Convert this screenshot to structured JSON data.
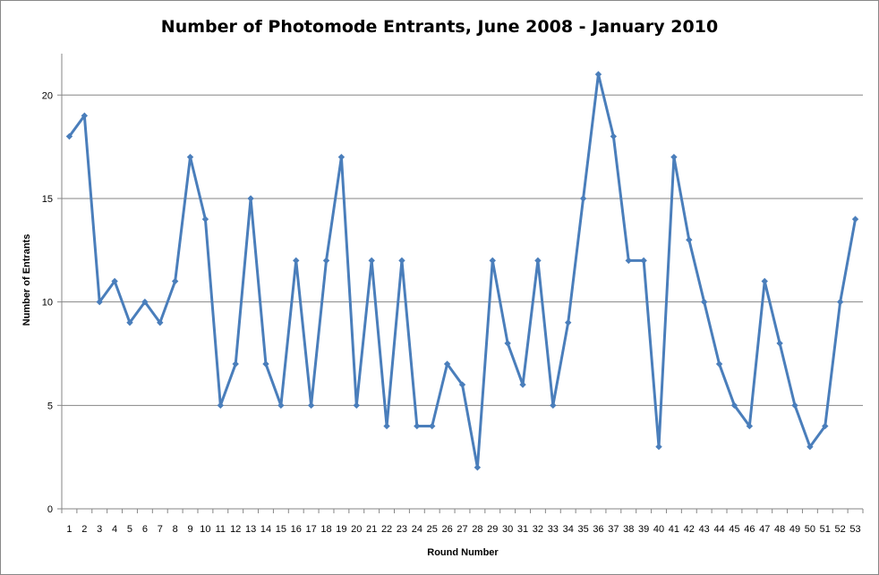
{
  "chart_data": {
    "type": "line",
    "title": "Number of Photomode Entrants, June 2008 - January 2010",
    "xlabel": "Round Number",
    "ylabel": "Number of Entrants",
    "x": [
      1,
      2,
      3,
      4,
      5,
      6,
      7,
      8,
      9,
      10,
      11,
      12,
      13,
      14,
      15,
      16,
      17,
      18,
      19,
      20,
      21,
      22,
      23,
      24,
      25,
      26,
      27,
      28,
      29,
      30,
      31,
      32,
      33,
      34,
      35,
      36,
      37,
      38,
      39,
      40,
      41,
      42,
      43,
      44,
      45,
      46,
      47,
      48,
      49,
      50,
      51,
      52,
      53
    ],
    "series": [
      {
        "values": [
          18,
          19,
          10,
          11,
          9,
          10,
          9,
          11,
          17,
          14,
          5,
          7,
          15,
          7,
          5,
          12,
          5,
          12,
          17,
          5,
          12,
          4,
          12,
          4,
          4,
          7,
          6,
          2,
          12,
          8,
          6,
          12,
          5,
          9,
          15,
          21,
          18,
          12,
          12,
          3,
          17,
          13,
          10,
          7,
          5,
          4,
          11,
          8,
          5,
          3,
          4,
          10,
          14
        ]
      }
    ],
    "ylim": [
      0,
      22
    ],
    "yticks": [
      0,
      5,
      10,
      15,
      20
    ],
    "grid": true,
    "legend": "none",
    "colors": {
      "line": "#4A7EBB",
      "grid": "#868686",
      "axis": "#868686"
    }
  }
}
